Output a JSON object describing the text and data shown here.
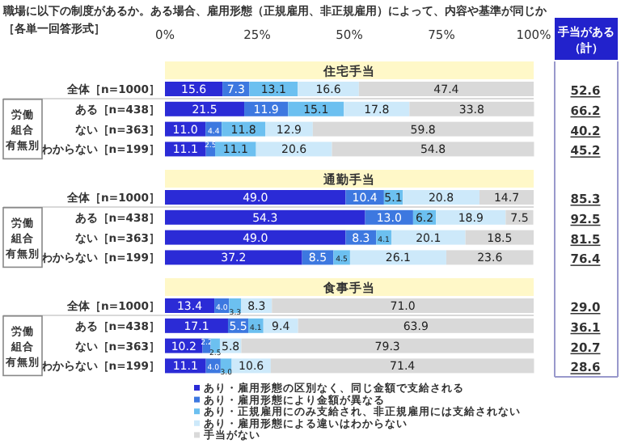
{
  "chart_data": [
    {
      "type": "bar",
      "orientation": "horizontal",
      "stacked": true,
      "title": "住宅手当",
      "annotations": [
        "職場に以下の制度があるか。ある場合、雇用形態（正規雇用、非正規雇用）によって、内容や基準が同じか",
        "［各単一回答形式］",
        "手当がある（計）",
        "労働組合有無別",
        "52.6",
        "66.2",
        "40.2",
        "45.2"
      ],
      "categories": [
        "全体［n=1000］",
        "ある［n=438］",
        "ない［n=363］",
        "わからない［n=199］"
      ],
      "xlim": [
        0,
        100
      ],
      "xticks": [
        {
          "value": 0,
          "label": "0%"
        },
        {
          "value": 25,
          "label": "25%"
        },
        {
          "value": 50,
          "label": "50%"
        },
        {
          "value": 75,
          "label": "75%"
        },
        {
          "value": 100,
          "label": "100%"
        }
      ],
      "legend": false,
      "series": [
        {
          "color": "#2b2bd6",
          "values": [
            15.6,
            21.5,
            11.0,
            11.1
          ],
          "value_labels": [
            "15.6",
            "21.5",
            "11.0",
            "11.1"
          ]
        },
        {
          "color": "#3d78e0",
          "values": [
            7.3,
            11.9,
            4.4,
            2.5
          ],
          "value_labels": [
            "7.3",
            "11.9",
            "4.4",
            "2.5"
          ]
        },
        {
          "color": "#6cc0f0",
          "values": [
            13.1,
            15.1,
            11.8,
            11.1
          ],
          "value_labels": [
            "13.1",
            "15.1",
            "11.8",
            "11.1"
          ]
        },
        {
          "color": "#cde9fa",
          "values": [
            16.6,
            17.8,
            12.9,
            20.6
          ],
          "value_labels": [
            "16.6",
            "17.8",
            "12.9",
            "20.6"
          ]
        },
        {
          "color": "#d9d9d9",
          "values": [
            47.4,
            33.8,
            59.8,
            54.8
          ],
          "value_labels": [
            "47.4",
            "33.8",
            "59.8",
            "54.8"
          ]
        }
      ]
    },
    {
      "type": "bar",
      "orientation": "horizontal",
      "stacked": true,
      "title": "通勤手当",
      "annotations": [
        "労働組合有無別",
        "85.3",
        "92.5",
        "81.5",
        "76.4"
      ],
      "categories": [
        "全体［n=1000］",
        "ある［n=438］",
        "ない［n=363］",
        "わからない［n=199］"
      ],
      "xlim": [
        0,
        100
      ],
      "tick_labels": "y",
      "legend": false,
      "series": [
        {
          "color": "#2b2bd6",
          "values": [
            49.0,
            54.3,
            49.0,
            37.2
          ],
          "value_labels": [
            "49.0",
            "54.3",
            "49.0",
            "37.2"
          ]
        },
        {
          "color": "#3d78e0",
          "values": [
            10.4,
            13.0,
            8.3,
            8.5
          ],
          "value_labels": [
            "10.4",
            "13.0",
            "8.3",
            "8.5"
          ]
        },
        {
          "color": "#6cc0f0",
          "values": [
            5.1,
            6.2,
            4.1,
            4.5
          ],
          "value_labels": [
            "5.1",
            "6.2",
            "4.1",
            "4.5"
          ]
        },
        {
          "color": "#cde9fa",
          "values": [
            20.8,
            18.9,
            20.1,
            26.1
          ],
          "value_labels": [
            "20.8",
            "18.9",
            "20.1",
            "26.1"
          ]
        },
        {
          "color": "#d9d9d9",
          "values": [
            14.7,
            7.5,
            18.5,
            23.6
          ],
          "value_labels": [
            "14.7",
            "7.5",
            "18.5",
            "23.6"
          ]
        }
      ]
    },
    {
      "type": "bar",
      "orientation": "horizontal",
      "stacked": true,
      "title": "食事手当",
      "annotations": [
        "労働組合有無別",
        "29.0",
        "36.1",
        "20.7",
        "28.6"
      ],
      "categories": [
        "全体［n=1000］",
        "ある［n=438］",
        "ない［n=363］",
        "わからない［n=199］"
      ],
      "xlim": [
        0,
        100
      ],
      "tick_labels": "y",
      "legend": "bottom",
      "series": [
        {
          "name": "あり・雇用形態の区別なく、同じ金額で支給される",
          "color": "#2b2bd6",
          "values": [
            13.4,
            17.1,
            10.2,
            11.1
          ],
          "value_labels": [
            "13.4",
            "17.1",
            "10.2",
            "11.1"
          ]
        },
        {
          "name": "あり・雇用形態により金額が異なる",
          "color": "#3d78e0",
          "values": [
            4.0,
            5.5,
            2.2,
            4.0
          ],
          "value_labels": [
            "4.0",
            "5.5",
            "2.2",
            "4.0"
          ]
        },
        {
          "name": "あり・正規雇用にのみ支給され、非正規雇用には支給されない",
          "color": "#6cc0f0",
          "values": [
            3.3,
            4.1,
            2.5,
            3.0
          ],
          "value_labels": [
            "3.3",
            "4.1",
            "2.5",
            "3.0"
          ]
        },
        {
          "name": "あり・雇用形態による違いはわからない",
          "color": "#cde9fa",
          "values": [
            8.3,
            9.4,
            5.8,
            10.6
          ],
          "value_labels": [
            "8.3",
            "9.4",
            "5.8",
            "10.6"
          ]
        },
        {
          "name": "手当がない",
          "color": "#d9d9d9",
          "values": [
            71.0,
            63.9,
            79.3,
            71.4
          ],
          "value_labels": [
            "71.0",
            "63.9",
            "79.3",
            "71.4"
          ]
        }
      ]
    }
  ]
}
